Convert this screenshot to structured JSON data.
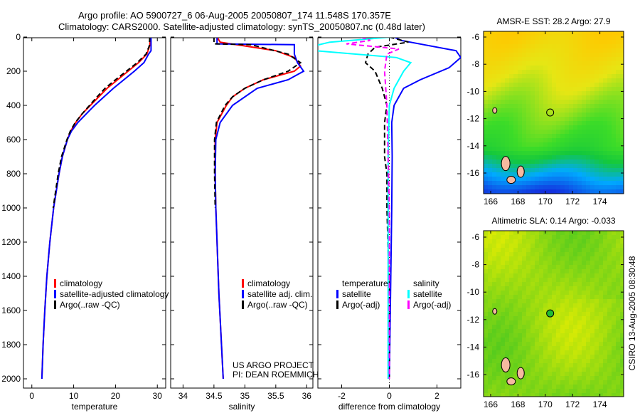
{
  "header": {
    "title_line1": "Argo profile: AO 5900727_6 06-Aug-2005 20050807_174 11.548S 170.357E",
    "title_line2": "Climatology: CARS2000. Satellite-adjusted climatology: synTS_20050807.nc (0.48d later)"
  },
  "colors": {
    "clim": "#ff0000",
    "sat": "#0000ff",
    "argo": "#000000",
    "sal_sat": "#00ffff",
    "sal_argo": "#ff00ff"
  },
  "chart_data": [
    {
      "type": "line",
      "id": "temperature",
      "xlabel": "temperature",
      "ylabel": "",
      "xlim": [
        -2,
        32
      ],
      "ylim": [
        2050,
        0
      ],
      "xticks": [
        "0",
        "10",
        "20",
        "30"
      ],
      "xtickvals": [
        0,
        10,
        20,
        30
      ],
      "yticks": [
        "0",
        "200",
        "400",
        "600",
        "800",
        "1000",
        "1200",
        "1400",
        "1600",
        "1800",
        "2000"
      ],
      "ytickvals": [
        0,
        200,
        400,
        600,
        800,
        1000,
        1200,
        1400,
        1600,
        1800,
        2000
      ],
      "legend": [
        "climatology",
        "satellite-adjusted climatology",
        "Argo(..raw -QC)"
      ],
      "series": [
        {
          "name": "climatology",
          "color": "#ff0000",
          "dash": false,
          "depth": [
            0,
            50,
            100,
            150,
            200,
            250,
            300,
            350,
            400,
            450,
            500,
            550,
            600,
            700,
            800,
            1000,
            1200,
            1400,
            1600,
            1800,
            2000
          ],
          "values": [
            28.3,
            28.2,
            27.5,
            25.5,
            23,
            20.5,
            18,
            16,
            14,
            12,
            10.5,
            9.3,
            8.5,
            7.3,
            6.5,
            5.2,
            4.3,
            3.6,
            3.1,
            2.7,
            2.4
          ]
        },
        {
          "name": "satellite-adjusted climatology",
          "color": "#0000ff",
          "dash": false,
          "depth": [
            0,
            80,
            100,
            150,
            200,
            300,
            400,
            500,
            550,
            600,
            700,
            800,
            1000,
            1200,
            1400,
            1600,
            1800,
            2000
          ],
          "values": [
            28.5,
            28.5,
            27.9,
            26.8,
            24.5,
            19.5,
            15,
            11,
            9.5,
            8.5,
            7.3,
            6.5,
            5.2,
            4.3,
            3.6,
            3.1,
            2.7,
            2.4
          ]
        },
        {
          "name": "Argo(..raw -QC)",
          "color": "#000000",
          "dash": true,
          "depth": [
            0,
            50,
            100,
            150,
            200,
            250,
            300,
            350,
            400,
            450,
            500,
            550,
            600,
            700,
            800,
            1000
          ],
          "values": [
            28.2,
            28.1,
            27.3,
            25.2,
            22.6,
            20,
            17.5,
            15.6,
            13.8,
            12,
            10.4,
            9.2,
            8.4,
            7.1,
            6.3,
            5.1
          ]
        }
      ]
    },
    {
      "type": "line",
      "id": "salinity",
      "xlabel": "salinity",
      "ylabel": "",
      "xlim": [
        33.8,
        36.1
      ],
      "ylim": [
        2050,
        0
      ],
      "xticks": [
        "34",
        "34.5",
        "35",
        "35.5",
        "36"
      ],
      "xtickvals": [
        34,
        34.5,
        35,
        35.5,
        36
      ],
      "legend": [
        "climatology",
        "satellite adj. clim.",
        "Argo(..raw -QC)"
      ],
      "annotation": [
        "US ARGO PROJECT",
        "PI: DEAN ROEMMICH"
      ],
      "series": [
        {
          "name": "climatology",
          "color": "#ff0000",
          "dash": false,
          "depth": [
            0,
            30,
            80,
            120,
            170,
            200,
            250,
            300,
            350,
            400,
            500,
            600,
            800,
            1000,
            1500,
            2000
          ],
          "values": [
            34.55,
            34.6,
            35.5,
            35.8,
            35.9,
            35.8,
            35.3,
            35.0,
            34.8,
            34.7,
            34.55,
            34.52,
            34.52,
            34.53,
            34.58,
            34.65
          ]
        },
        {
          "name": "satellite adj. clim.",
          "color": "#0000ff",
          "dash": false,
          "depth": [
            0,
            40,
            45,
            100,
            150,
            200,
            250,
            300,
            400,
            500,
            600,
            800,
            1000,
            1500,
            2000
          ],
          "values": [
            34.55,
            34.55,
            35.8,
            35.8,
            35.85,
            35.95,
            35.7,
            35.2,
            34.8,
            34.6,
            34.53,
            34.52,
            34.53,
            34.58,
            34.65
          ]
        },
        {
          "name": "Argo(..raw -QC)",
          "color": "#000000",
          "dash": true,
          "depth": [
            0,
            40,
            45,
            100,
            150,
            200,
            250,
            300,
            350,
            400,
            500,
            600,
            800,
            1000
          ],
          "values": [
            34.5,
            34.5,
            35.1,
            35.7,
            35.9,
            35.7,
            35.3,
            35.0,
            34.8,
            34.68,
            34.54,
            34.51,
            34.51,
            34.52
          ]
        }
      ]
    },
    {
      "type": "line",
      "id": "difference",
      "xlabel": "difference from climatology",
      "ylabel": "",
      "xlim": [
        -3,
        3
      ],
      "ylim": [
        2050,
        0
      ],
      "xticks": [
        "-2",
        "0",
        "2"
      ],
      "xtickvals": [
        -2,
        0,
        2
      ],
      "legend_headers": [
        "temperature",
        "salinity"
      ],
      "legend": [
        "satellite",
        "Argo(-adj)",
        "satellite",
        "Argo(-adj)"
      ],
      "series": [
        {
          "name": "temperature satellite",
          "color": "#0000ff",
          "dash": false,
          "depth": [
            0,
            20,
            80,
            120,
            180,
            250,
            300,
            400,
            500,
            700,
            1000,
            1500,
            2000
          ],
          "values": [
            0.2,
            0.5,
            2.8,
            3.0,
            2.5,
            1.3,
            0.6,
            0.2,
            0.1,
            0.12,
            0.1,
            0.05,
            0.0
          ]
        },
        {
          "name": "temperature Argo(-adj)",
          "color": "#000000",
          "dash": true,
          "depth": [
            0,
            30,
            60,
            100,
            150,
            200,
            300,
            400,
            500,
            700,
            800,
            1000,
            1500,
            2000
          ],
          "values": [
            0,
            0.8,
            -0.6,
            -0.9,
            -1.0,
            -0.6,
            -0.3,
            -0.1,
            -0.2,
            -0.2,
            -0.1,
            -0.1,
            0,
            0
          ]
        },
        {
          "name": "salinity satellite",
          "color": "#00ffff",
          "dash": false,
          "depth": [
            0,
            30,
            50,
            80,
            120,
            150,
            200,
            300,
            400,
            700,
            1000,
            2000
          ],
          "values": [
            0.1,
            -2.5,
            -3.1,
            -3.1,
            0.3,
            0.9,
            0.6,
            0.2,
            0.0,
            -0.05,
            -0.05,
            -0.05
          ]
        },
        {
          "name": "salinity Argo(-adj)",
          "color": "#ff00ff",
          "dash": true,
          "depth": [
            0,
            20,
            40,
            70,
            100,
            200,
            400,
            700,
            1000,
            2000
          ],
          "values": [
            -1.2,
            -0.8,
            -1.8,
            0.4,
            -0.1,
            -0.2,
            -0.1,
            -0.05,
            0,
            0
          ]
        }
      ]
    }
  ],
  "maps": [
    {
      "title": "AMSR-E SST: 28.2 Argo: 27.9",
      "lat_ticks": [
        "-6",
        "-8",
        "-10",
        "-12",
        "-14",
        "-16"
      ],
      "lon_ticks": [
        "166",
        "168",
        "170",
        "172",
        "174"
      ],
      "argo_lon": 170.357,
      "argo_lat": -11.548
    },
    {
      "title": "Altimetric SLA: 0.14 Argo: -0.033",
      "lat_ticks": [
        "-6",
        "-8",
        "-10",
        "-12",
        "-14",
        "-16"
      ],
      "lon_ticks": [
        "166",
        "168",
        "170",
        "172",
        "174"
      ],
      "argo_lon": 170.357,
      "argo_lat": -11.548
    }
  ],
  "footer": {
    "credit": "CSIRO 13-Aug-2005 08:30:48"
  }
}
